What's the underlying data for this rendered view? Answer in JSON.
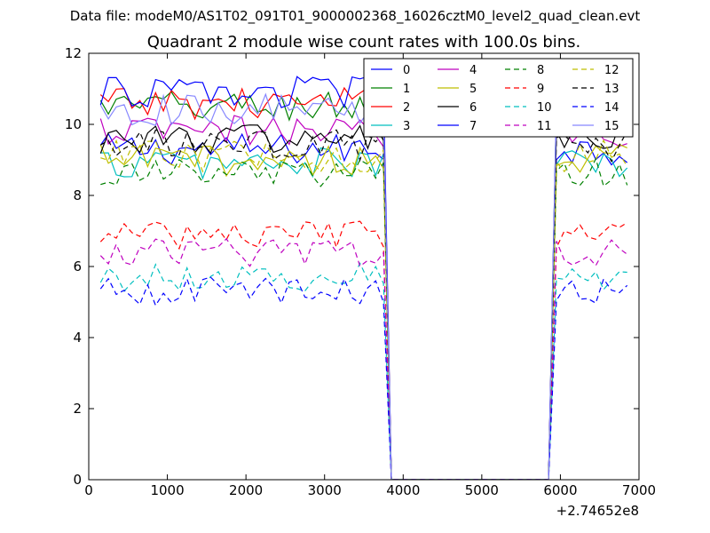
{
  "figure": {
    "supertitle": "Data file: modeM0/AS1T02_091T01_9000002368_16026cztM0_level2_quad_clean.evt"
  },
  "chart_data": {
    "type": "line",
    "title": "Quadrant 2 module wise count rates with 100.0s bins.",
    "xlabel": "",
    "ylabel": "",
    "x_offset_label": "+2.74652e8",
    "xlim": [
      0,
      7000
    ],
    "ylim": [
      0,
      12
    ],
    "x_ticks": [
      "0",
      "1000",
      "2000",
      "3000",
      "4000",
      "5000",
      "6000",
      "7000"
    ],
    "y_ticks": [
      "0",
      "2",
      "4",
      "6",
      "8",
      "10",
      "12"
    ],
    "x_tick_values": [
      0,
      1000,
      2000,
      3000,
      4000,
      5000,
      6000,
      7000
    ],
    "y_tick_values": [
      0,
      2,
      4,
      6,
      8,
      10,
      12
    ],
    "grid": false,
    "legend_placement": "top-right",
    "legend_columns": 4,
    "x_active_1": [
      150,
      3750,
      100
    ],
    "x_gap": [
      3850,
      3950,
      4050,
      4150,
      4250,
      4350,
      4450,
      4550,
      4650,
      4750,
      4850,
      4950,
      5050,
      5150,
      5250,
      5350,
      5450,
      5550,
      5650,
      5750,
      5850
    ],
    "x_active_2": [
      5950,
      6850,
      100
    ],
    "series": [
      {
        "name": "0",
        "color": "#0000ff",
        "dash": "solid",
        "level": 9.3
      },
      {
        "name": "1",
        "color": "#008000",
        "dash": "solid",
        "level": 10.5
      },
      {
        "name": "2",
        "color": "#ff0000",
        "dash": "solid",
        "level": 10.6
      },
      {
        "name": "3",
        "color": "#00bfbf",
        "dash": "solid",
        "level": 8.9
      },
      {
        "name": "4",
        "color": "#bf00bf",
        "dash": "solid",
        "level": 9.8
      },
      {
        "name": "5",
        "color": "#bfbf00",
        "dash": "solid",
        "level": 9.0
      },
      {
        "name": "6",
        "color": "#000000",
        "dash": "solid",
        "level": 9.6
      },
      {
        "name": "7",
        "color": "#0000ff",
        "dash": "solid",
        "level": 10.9
      },
      {
        "name": "8",
        "color": "#008000",
        "dash": "dashed",
        "level": 8.6
      },
      {
        "name": "9",
        "color": "#ff0000",
        "dash": "dashed",
        "level": 6.9
      },
      {
        "name": "10",
        "color": "#00bfbf",
        "dash": "dashed",
        "level": 5.7
      },
      {
        "name": "11",
        "color": "#bf00bf",
        "dash": "dashed",
        "level": 6.4
      },
      {
        "name": "12",
        "color": "#bfbf00",
        "dash": "dashed",
        "level": 9.1
      },
      {
        "name": "13",
        "color": "#000000",
        "dash": "dashed",
        "level": 9.4
      },
      {
        "name": "14",
        "color": "#0000ff",
        "dash": "dashed",
        "level": 5.3
      },
      {
        "name": "15",
        "color": "#8888ff",
        "dash": "solid",
        "level": 10.4
      }
    ]
  }
}
